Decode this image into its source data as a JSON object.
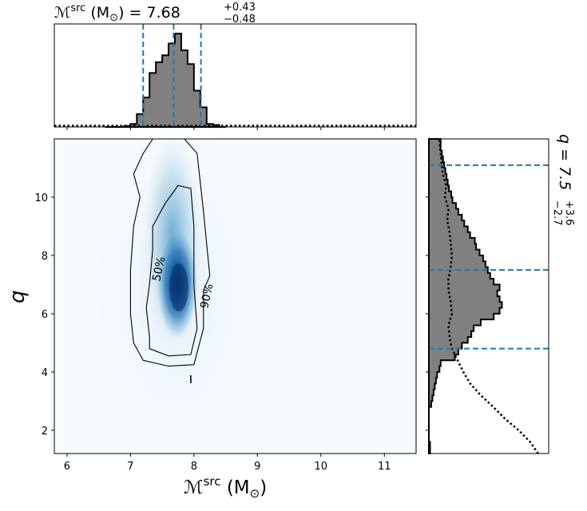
{
  "figure": {
    "top_title_main": "ℳ",
    "top_title_sup": "src",
    "top_title_unit": " (M",
    "top_title_unit_sub": "⊙",
    "top_title_eq": ") = 7.68",
    "top_title_plus": "+0.43",
    "top_title_minus": "−0.48",
    "right_title_main": "q = 7.5",
    "right_title_plus": "+3.6",
    "right_title_minus": "−2.7",
    "xlabel_main": "ℳ",
    "xlabel_sup": "src",
    "xlabel_unit": " (M",
    "xlabel_unit_sub": "⊙",
    "xlabel_close": ")",
    "ylabel": "q",
    "contour_50_label": "50%",
    "contour_90_label": "90%"
  },
  "chart_data": [
    {
      "type": "histogram",
      "panel": "marginal-chirp-mass",
      "x_range": [
        5.8,
        11.5
      ],
      "bins": [
        6.6,
        6.7,
        6.8,
        6.9,
        7.0,
        7.1,
        7.2,
        7.3,
        7.4,
        7.5,
        7.6,
        7.7,
        7.8,
        7.9,
        8.0,
        8.1,
        8.2,
        8.3,
        8.4
      ],
      "density": [
        0.0,
        0.0,
        0.0,
        0.01,
        0.03,
        0.13,
        0.3,
        0.55,
        0.66,
        0.73,
        0.85,
        0.95,
        0.78,
        0.64,
        0.37,
        0.2,
        0.03,
        0.02,
        0.0
      ],
      "prior_level": 0.012,
      "quantiles": [
        7.2,
        7.68,
        8.11
      ],
      "median": 7.68
    },
    {
      "type": "heatmap",
      "panel": "joint-2d",
      "xlim": [
        5.8,
        11.5
      ],
      "ylim": [
        1.2,
        12.0
      ],
      "xticks": [
        "6",
        "7",
        "8",
        "9",
        "10",
        "11"
      ],
      "yticks": [
        "2",
        "4",
        "6",
        "8",
        "10"
      ],
      "peak": {
        "x": 7.75,
        "y": 6.8
      },
      "contour_50": [
        [
          7.3,
          4.8
        ],
        [
          7.6,
          4.55
        ],
        [
          7.95,
          4.6
        ],
        [
          8.05,
          5.5
        ],
        [
          8.0,
          7.0
        ],
        [
          8.0,
          9.0
        ],
        [
          7.95,
          10.3
        ],
        [
          7.75,
          10.4
        ],
        [
          7.55,
          9.8
        ],
        [
          7.35,
          9.0
        ],
        [
          7.35,
          8.2
        ],
        [
          7.3,
          7.0
        ],
        [
          7.25,
          6.2
        ],
        [
          7.3,
          5.2
        ]
      ],
      "contour_90": [
        [
          7.2,
          4.4
        ],
        [
          7.6,
          4.2
        ],
        [
          8.0,
          4.25
        ],
        [
          8.15,
          5.5
        ],
        [
          8.15,
          6.8
        ],
        [
          8.25,
          7.3
        ],
        [
          8.15,
          9.5
        ],
        [
          8.05,
          11.5
        ],
        [
          7.85,
          12.0
        ],
        [
          7.35,
          12.0
        ],
        [
          7.2,
          11.5
        ],
        [
          7.05,
          10.8
        ],
        [
          7.15,
          10.0
        ],
        [
          7.05,
          9.0
        ],
        [
          7.0,
          7.5
        ],
        [
          7.0,
          6.0
        ],
        [
          7.05,
          5.0
        ]
      ],
      "isolated_mark": {
        "x": 7.95,
        "y": 3.75
      }
    },
    {
      "type": "histogram",
      "panel": "marginal-q",
      "orientation": "horizontal",
      "y_range": [
        1.2,
        12.0
      ],
      "bins": [
        1.2,
        1.4,
        1.6,
        1.8,
        2.0,
        2.2,
        2.4,
        2.6,
        2.8,
        3.0,
        3.2,
        3.4,
        3.6,
        3.8,
        4.0,
        4.2,
        4.4,
        4.6,
        4.8,
        5.0,
        5.2,
        5.4,
        5.6,
        5.8,
        6.0,
        6.2,
        6.4,
        6.6,
        6.8,
        7.0,
        7.2,
        7.4,
        7.6,
        7.8,
        8.0,
        8.2,
        8.4,
        8.6,
        8.8,
        9.0,
        9.2,
        9.4,
        9.6,
        9.8,
        10.0,
        10.2,
        10.4,
        10.6,
        10.8,
        11.0,
        11.2,
        11.4,
        11.6,
        11.8
      ],
      "density": [
        0.01,
        0.01,
        0.0,
        0.0,
        0.0,
        0.0,
        0.0,
        0.0,
        0.02,
        0.03,
        0.04,
        0.05,
        0.06,
        0.07,
        0.09,
        0.1,
        0.22,
        0.25,
        0.28,
        0.33,
        0.36,
        0.38,
        0.44,
        0.55,
        0.6,
        0.62,
        0.6,
        0.58,
        0.6,
        0.55,
        0.52,
        0.5,
        0.48,
        0.46,
        0.43,
        0.4,
        0.39,
        0.35,
        0.33,
        0.3,
        0.28,
        0.25,
        0.23,
        0.2,
        0.19,
        0.17,
        0.16,
        0.15,
        0.14,
        0.13,
        0.12,
        0.11,
        0.1,
        0.1
      ],
      "prior": [
        [
          1.2,
          0.95
        ],
        [
          1.6,
          0.88
        ],
        [
          2.0,
          0.78
        ],
        [
          2.4,
          0.66
        ],
        [
          2.8,
          0.56
        ],
        [
          3.2,
          0.45
        ],
        [
          3.6,
          0.36
        ],
        [
          4.0,
          0.3
        ],
        [
          4.4,
          0.25
        ],
        [
          4.8,
          0.2
        ],
        [
          5.2,
          0.18
        ],
        [
          5.6,
          0.17
        ],
        [
          6.0,
          0.2
        ],
        [
          6.4,
          0.19
        ],
        [
          6.8,
          0.17
        ],
        [
          7.2,
          0.17
        ],
        [
          7.6,
          0.19
        ],
        [
          8.0,
          0.2
        ],
        [
          8.4,
          0.19
        ],
        [
          8.8,
          0.18
        ],
        [
          9.2,
          0.16
        ],
        [
          9.6,
          0.17
        ],
        [
          10.0,
          0.14
        ],
        [
          10.4,
          0.15
        ],
        [
          10.8,
          0.12
        ],
        [
          11.2,
          0.11
        ],
        [
          11.6,
          0.1
        ],
        [
          12.0,
          0.09
        ]
      ],
      "quantiles": [
        4.8,
        7.5,
        11.1
      ],
      "median": 7.5
    }
  ],
  "colors": {
    "hist_fill": "#808080",
    "quantile_line": "#1f77b4",
    "heat_high": "#08306b",
    "heat_low": "#f7fbff"
  }
}
